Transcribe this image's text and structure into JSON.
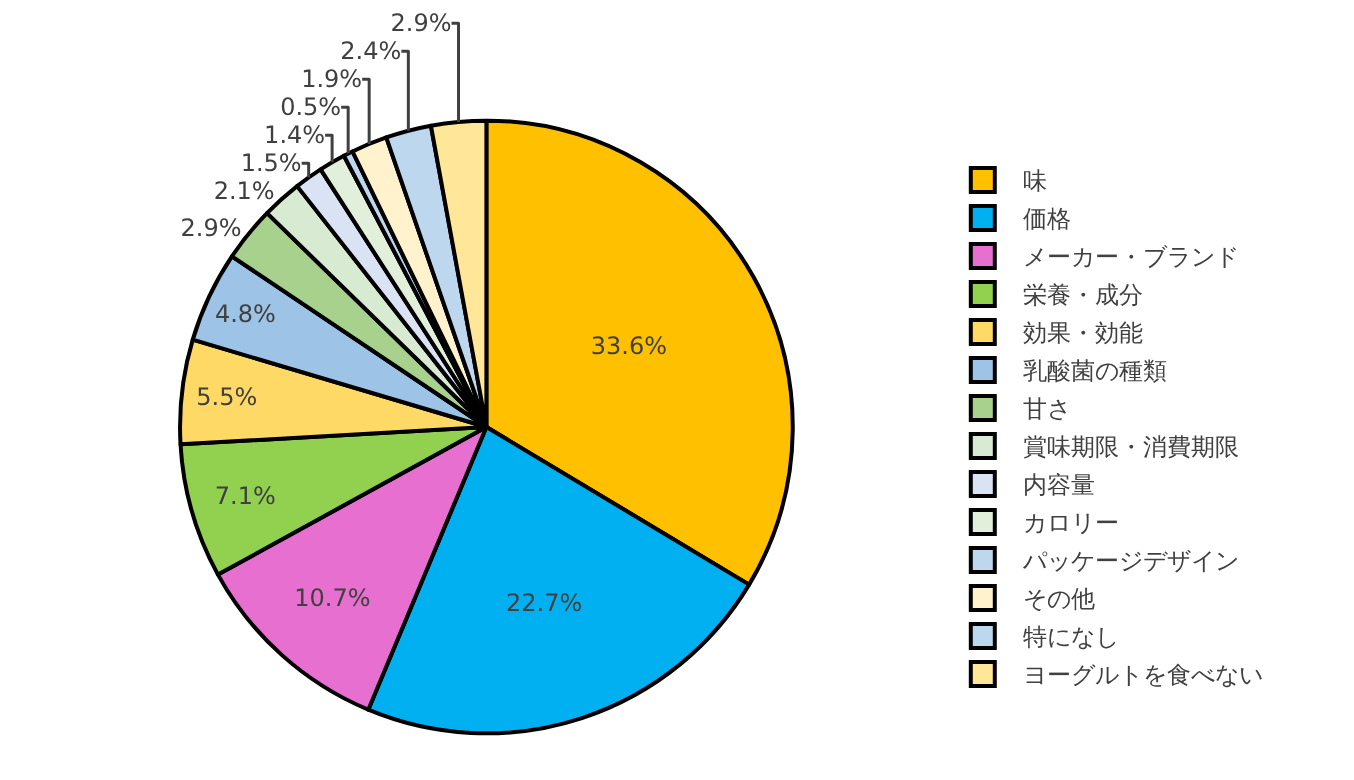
{
  "chart_data": {
    "type": "pie",
    "categories": [
      "味",
      "価格",
      "メーカー・ブランド",
      "栄養・成分",
      "効果・効能",
      "乳酸菌の種類",
      "甘さ",
      "賞味期限・消費期限",
      "内容量",
      "カロリー",
      "パッケージデザイン",
      "その他",
      "特になし",
      "ヨーグルトを食べない"
    ],
    "values": [
      33.6,
      22.7,
      10.7,
      7.1,
      5.5,
      4.8,
      2.9,
      2.1,
      1.5,
      1.4,
      0.5,
      1.9,
      2.4,
      2.9
    ],
    "value_labels": [
      "33.6%",
      "22.7%",
      "10.7%",
      "7.1%",
      "5.5%",
      "4.8%",
      "2.9%",
      "2.1%",
      "1.5%",
      "1.4%",
      "0.5%",
      "1.9%",
      "2.4%",
      "2.9%"
    ],
    "colors": [
      "#ffc000",
      "#00b0f0",
      "#e66fd0",
      "#92d050",
      "#ffd966",
      "#9dc3e6",
      "#a9d18e",
      "#d9ead3",
      "#dae3f3",
      "#e2efda",
      "#bdd7ee",
      "#fff2cc",
      "#bdd7ee",
      "#ffe699"
    ],
    "legend": "right"
  }
}
